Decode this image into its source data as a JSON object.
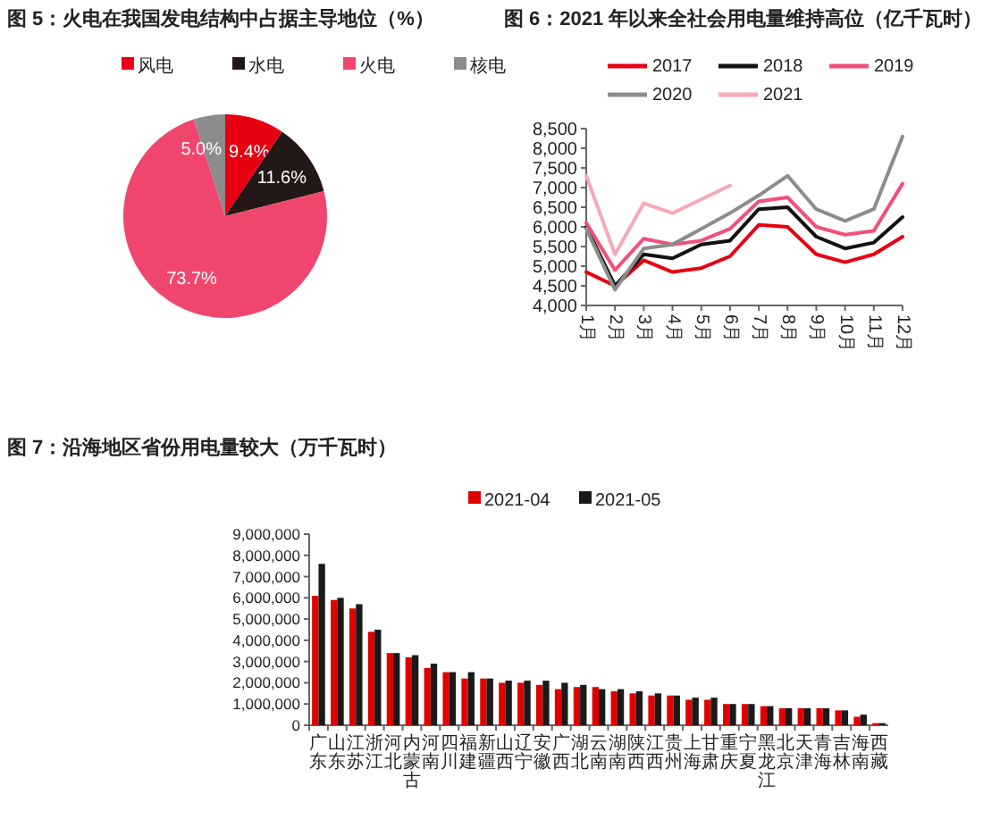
{
  "chart_data": [
    {
      "type": "pie",
      "title": "图 5：火电在我国发电结构中占据主导地位（%）",
      "categories": [
        "风电",
        "水电",
        "火电",
        "核电"
      ],
      "values": [
        9.4,
        11.6,
        73.7,
        5.0
      ],
      "colors": [
        "#e60012",
        "#231815",
        "#f0466e",
        "#8c8c8c"
      ],
      "value_labels": [
        "9.4%",
        "11.6%",
        "73.7%",
        "5.0%"
      ],
      "legend": "top"
    },
    {
      "type": "line",
      "title": "图 6：2021 年以来全社会用电量维持高位（亿千瓦时）",
      "categories": [
        "1月",
        "2月",
        "3月",
        "4月",
        "5月",
        "6月",
        "7月",
        "8月",
        "9月",
        "10月",
        "11月",
        "12月"
      ],
      "ylim": [
        4000,
        8500
      ],
      "yticks": [
        {
          "value": 4000,
          "label": "4,000"
        },
        {
          "value": 4500,
          "label": "4,500"
        },
        {
          "value": 5000,
          "label": "5,000"
        },
        {
          "value": 5500,
          "label": "5,500"
        },
        {
          "value": 6000,
          "label": "6,000"
        },
        {
          "value": 6500,
          "label": "6,500"
        },
        {
          "value": 7000,
          "label": "7,000"
        },
        {
          "value": 7500,
          "label": "7,500"
        },
        {
          "value": 8000,
          "label": "8,000"
        },
        {
          "value": 8500,
          "label": "8,500"
        }
      ],
      "legend": "top",
      "series": [
        {
          "name": "2017",
          "color": "#e60012",
          "values": [
            4850,
            4500,
            5150,
            4850,
            4950,
            5250,
            6050,
            6000,
            5300,
            5100,
            5300,
            5750
          ]
        },
        {
          "name": "2018",
          "color": "#111111",
          "values": [
            6000,
            4500,
            5300,
            5200,
            5550,
            5650,
            6450,
            6500,
            5750,
            5450,
            5600,
            6250
          ]
        },
        {
          "name": "2019",
          "color": "#f0507a",
          "values": [
            6100,
            4900,
            5700,
            5550,
            5650,
            5950,
            6650,
            6750,
            6000,
            5800,
            5900,
            7100
          ]
        },
        {
          "name": "2020",
          "color": "#8c8c8c",
          "values": [
            5950,
            4400,
            5450,
            5550,
            5950,
            6350,
            6800,
            7300,
            6450,
            6150,
            6450,
            8300
          ]
        },
        {
          "name": "2021",
          "color": "#f7a8b8",
          "values": [
            7300,
            5300,
            6600,
            6350,
            6700,
            7050,
            null,
            null,
            null,
            null,
            null,
            null
          ]
        }
      ]
    },
    {
      "type": "bar",
      "title": "图 7：沿海地区省份用电量较大（万千瓦时）",
      "categories": [
        "广东",
        "山东",
        "江苏",
        "浙江",
        "河北",
        "内蒙古",
        "河南",
        "四川",
        "福建",
        "新疆",
        "山西",
        "辽宁",
        "安徽",
        "广西",
        "湖北",
        "云南",
        "湖南",
        "陕西",
        "江西",
        "贵州",
        "上海",
        "甘肃",
        "重庆",
        "宁夏",
        "黑龙江",
        "北京",
        "天津",
        "青海",
        "吉林",
        "海南",
        "西藏"
      ],
      "ylim": [
        0,
        9000000
      ],
      "yticks": [
        {
          "value": 0,
          "label": "0"
        },
        {
          "value": 1000000,
          "label": "1,000,000"
        },
        {
          "value": 2000000,
          "label": "2,000,000"
        },
        {
          "value": 3000000,
          "label": "3,000,000"
        },
        {
          "value": 4000000,
          "label": "4,000,000"
        },
        {
          "value": 5000000,
          "label": "5,000,000"
        },
        {
          "value": 6000000,
          "label": "6,000,000"
        },
        {
          "value": 7000000,
          "label": "7,000,000"
        },
        {
          "value": 8000000,
          "label": "8,000,000"
        },
        {
          "value": 9000000,
          "label": "9,000,000"
        }
      ],
      "legend": "top",
      "series": [
        {
          "name": "2021-04",
          "color": "#e00000",
          "values": [
            6100000,
            5900000,
            5500000,
            4400000,
            3400000,
            3200000,
            2700000,
            2500000,
            2200000,
            2200000,
            2000000,
            2000000,
            1900000,
            1700000,
            1800000,
            1800000,
            1600000,
            1500000,
            1400000,
            1400000,
            1200000,
            1200000,
            1000000,
            1000000,
            900000,
            800000,
            800000,
            800000,
            700000,
            400000,
            100000
          ]
        },
        {
          "name": "2021-05",
          "color": "#1a1a1a",
          "values": [
            7600000,
            6000000,
            5700000,
            4500000,
            3400000,
            3300000,
            2900000,
            2500000,
            2500000,
            2200000,
            2100000,
            2100000,
            2100000,
            2000000,
            1900000,
            1700000,
            1700000,
            1600000,
            1500000,
            1400000,
            1300000,
            1300000,
            1000000,
            1000000,
            900000,
            800000,
            800000,
            800000,
            700000,
            500000,
            100000
          ]
        }
      ]
    }
  ]
}
